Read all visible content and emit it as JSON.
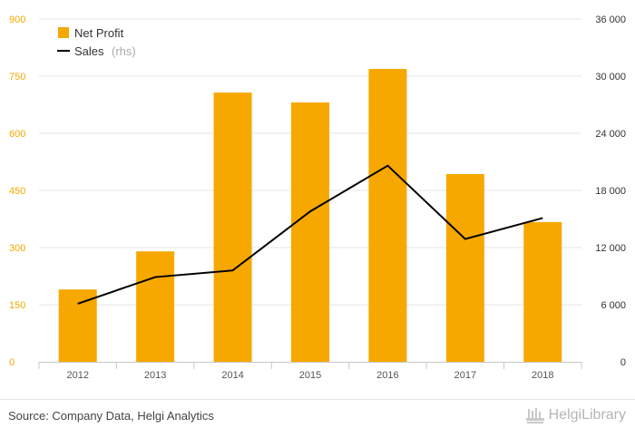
{
  "chart_data": {
    "type": "bar",
    "categories": [
      "2012",
      "2013",
      "2014",
      "2015",
      "2016",
      "2017",
      "2018"
    ],
    "series": [
      {
        "name": "Net Profit",
        "type": "bar",
        "axis": "left",
        "values": [
          190,
          290,
          707,
          681,
          769,
          493,
          367
        ]
      },
      {
        "name": "Sales",
        "name_note": "(rhs)",
        "type": "line",
        "axis": "right",
        "values": [
          6100,
          8900,
          9600,
          15800,
          20600,
          12900,
          15100
        ]
      }
    ],
    "left_axis": {
      "ylim": [
        0,
        900
      ],
      "ticks": [
        0,
        150,
        300,
        450,
        600,
        750,
        900
      ],
      "tick_labels": [
        "0",
        "150",
        "300",
        "450",
        "600",
        "750",
        "900"
      ]
    },
    "right_axis": {
      "ylim": [
        0,
        36000
      ],
      "ticks": [
        0,
        6000,
        12000,
        18000,
        24000,
        30000,
        36000
      ],
      "tick_labels": [
        "0",
        "6 000",
        "12 000",
        "18 000",
        "24 000",
        "30 000",
        "36 000"
      ]
    },
    "grid": true,
    "legend_position": "top-left",
    "colors": {
      "bar": "#f7a800",
      "line": "#000000",
      "grid": "#e6e6e6"
    }
  },
  "legend": {
    "net_profit": "Net Profit",
    "sales": "Sales",
    "sales_note": "(rhs)"
  },
  "footer": {
    "source": "Source: Company Data, Helgi Analytics",
    "brand": "HelgiLibrary"
  }
}
